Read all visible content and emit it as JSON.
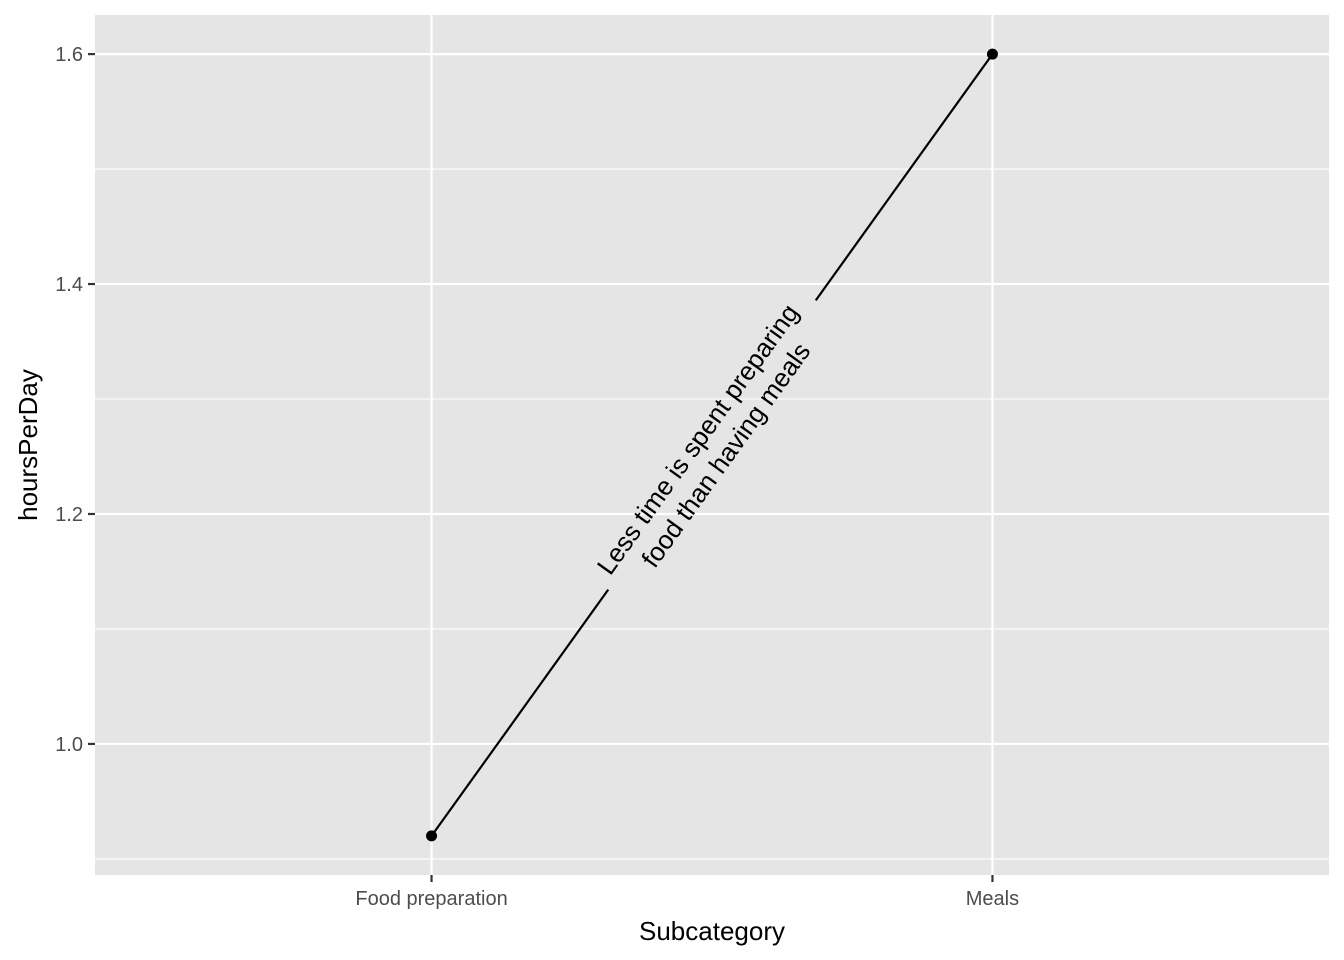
{
  "chart_data": {
    "type": "line",
    "categories": [
      "Food preparation",
      "Meals"
    ],
    "series": [
      {
        "values": [
          0.92,
          1.6
        ]
      }
    ],
    "xlabel": "Subcategory",
    "ylabel": "hoursPerDay",
    "ylim": [
      0.886,
      1.634
    ],
    "y_ticks": [
      1.0,
      1.2,
      1.4,
      1.6
    ],
    "y_tick_labels": [
      "1.0",
      "1.2",
      "1.4",
      "1.6"
    ],
    "grid": true,
    "annotation": {
      "line1": "Less time is spent preparing",
      "line2": "food than having meals"
    },
    "colors": {
      "panel": "#E5E5E5",
      "grid": "#FFFFFF",
      "line": "#000000",
      "tick_text": "#4D4D4D",
      "tick_mark": "#333333"
    }
  }
}
